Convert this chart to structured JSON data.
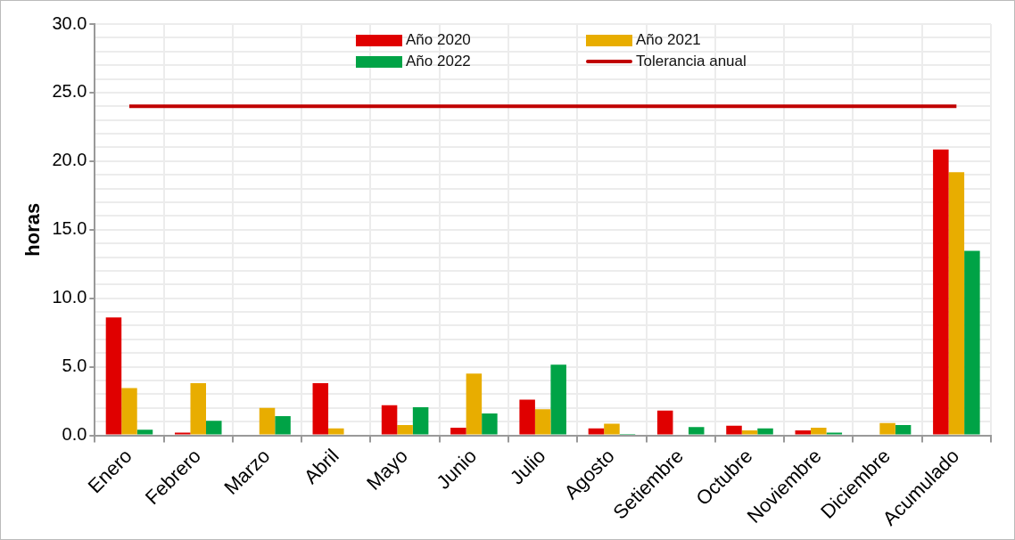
{
  "chart_data": {
    "type": "bar",
    "ylabel": "horas",
    "categories": [
      "Enero",
      "Febrero",
      "Marzo",
      "Abril",
      "Mayo",
      "Junio",
      "Julio",
      "Agosto",
      "Setiembre",
      "Octubre",
      "Noviembre",
      "Diciembre",
      "Acumulado"
    ],
    "series": [
      {
        "name": "Año 2020",
        "color": "#e00000",
        "values": [
          8.6,
          0.2,
          0,
          3.8,
          2.2,
          0.55,
          2.6,
          0.5,
          1.8,
          0.7,
          0.35,
          0,
          20.85
        ]
      },
      {
        "name": "Año 2021",
        "color": "#e8ad00",
        "values": [
          3.45,
          3.8,
          2.0,
          0.5,
          0.75,
          4.5,
          1.9,
          0.85,
          0,
          0.35,
          0.55,
          0.9,
          19.2
        ]
      },
      {
        "name": "Año 2022",
        "color": "#00a346",
        "values": [
          0.4,
          1.05,
          1.4,
          0,
          2.05,
          1.6,
          5.15,
          0.1,
          0.6,
          0.5,
          0.2,
          0.75,
          13.45
        ]
      },
      {
        "name": "Tolerancia anual",
        "type": "line",
        "color": "#c00000",
        "values": [
          24,
          24,
          24,
          24,
          24,
          24,
          24,
          24,
          24,
          24,
          24,
          24,
          24
        ]
      }
    ],
    "ylim": [
      0,
      30
    ],
    "yticks": [
      {
        "value": 0,
        "label": "0.0"
      },
      {
        "value": 1,
        "label": null
      },
      {
        "value": 2,
        "label": null
      },
      {
        "value": 3,
        "label": null
      },
      {
        "value": 4,
        "label": null
      },
      {
        "value": 5,
        "label": "5.0"
      },
      {
        "value": 6,
        "label": null
      },
      {
        "value": 7,
        "label": null
      },
      {
        "value": 8,
        "label": null
      },
      {
        "value": 9,
        "label": null
      },
      {
        "value": 10,
        "label": "10.0"
      },
      {
        "value": 11,
        "label": null
      },
      {
        "value": 12,
        "label": null
      },
      {
        "value": 13,
        "label": null
      },
      {
        "value": 14,
        "label": null
      },
      {
        "value": 15,
        "label": "15.0"
      },
      {
        "value": 16,
        "label": null
      },
      {
        "value": 17,
        "label": null
      },
      {
        "value": 18,
        "label": null
      },
      {
        "value": 19,
        "label": null
      },
      {
        "value": 20,
        "label": "20.0"
      },
      {
        "value": 21,
        "label": null
      },
      {
        "value": 22,
        "label": null
      },
      {
        "value": 23,
        "label": null
      },
      {
        "value": 24,
        "label": null
      },
      {
        "value": 25,
        "label": "25.0"
      },
      {
        "value": 26,
        "label": null
      },
      {
        "value": 27,
        "label": null
      },
      {
        "value": 28,
        "label": null
      },
      {
        "value": 29,
        "label": null
      },
      {
        "value": 30,
        "label": "30.0"
      }
    ],
    "grid": true,
    "legend": "top",
    "marker": "none",
    "line_style": "solid"
  }
}
